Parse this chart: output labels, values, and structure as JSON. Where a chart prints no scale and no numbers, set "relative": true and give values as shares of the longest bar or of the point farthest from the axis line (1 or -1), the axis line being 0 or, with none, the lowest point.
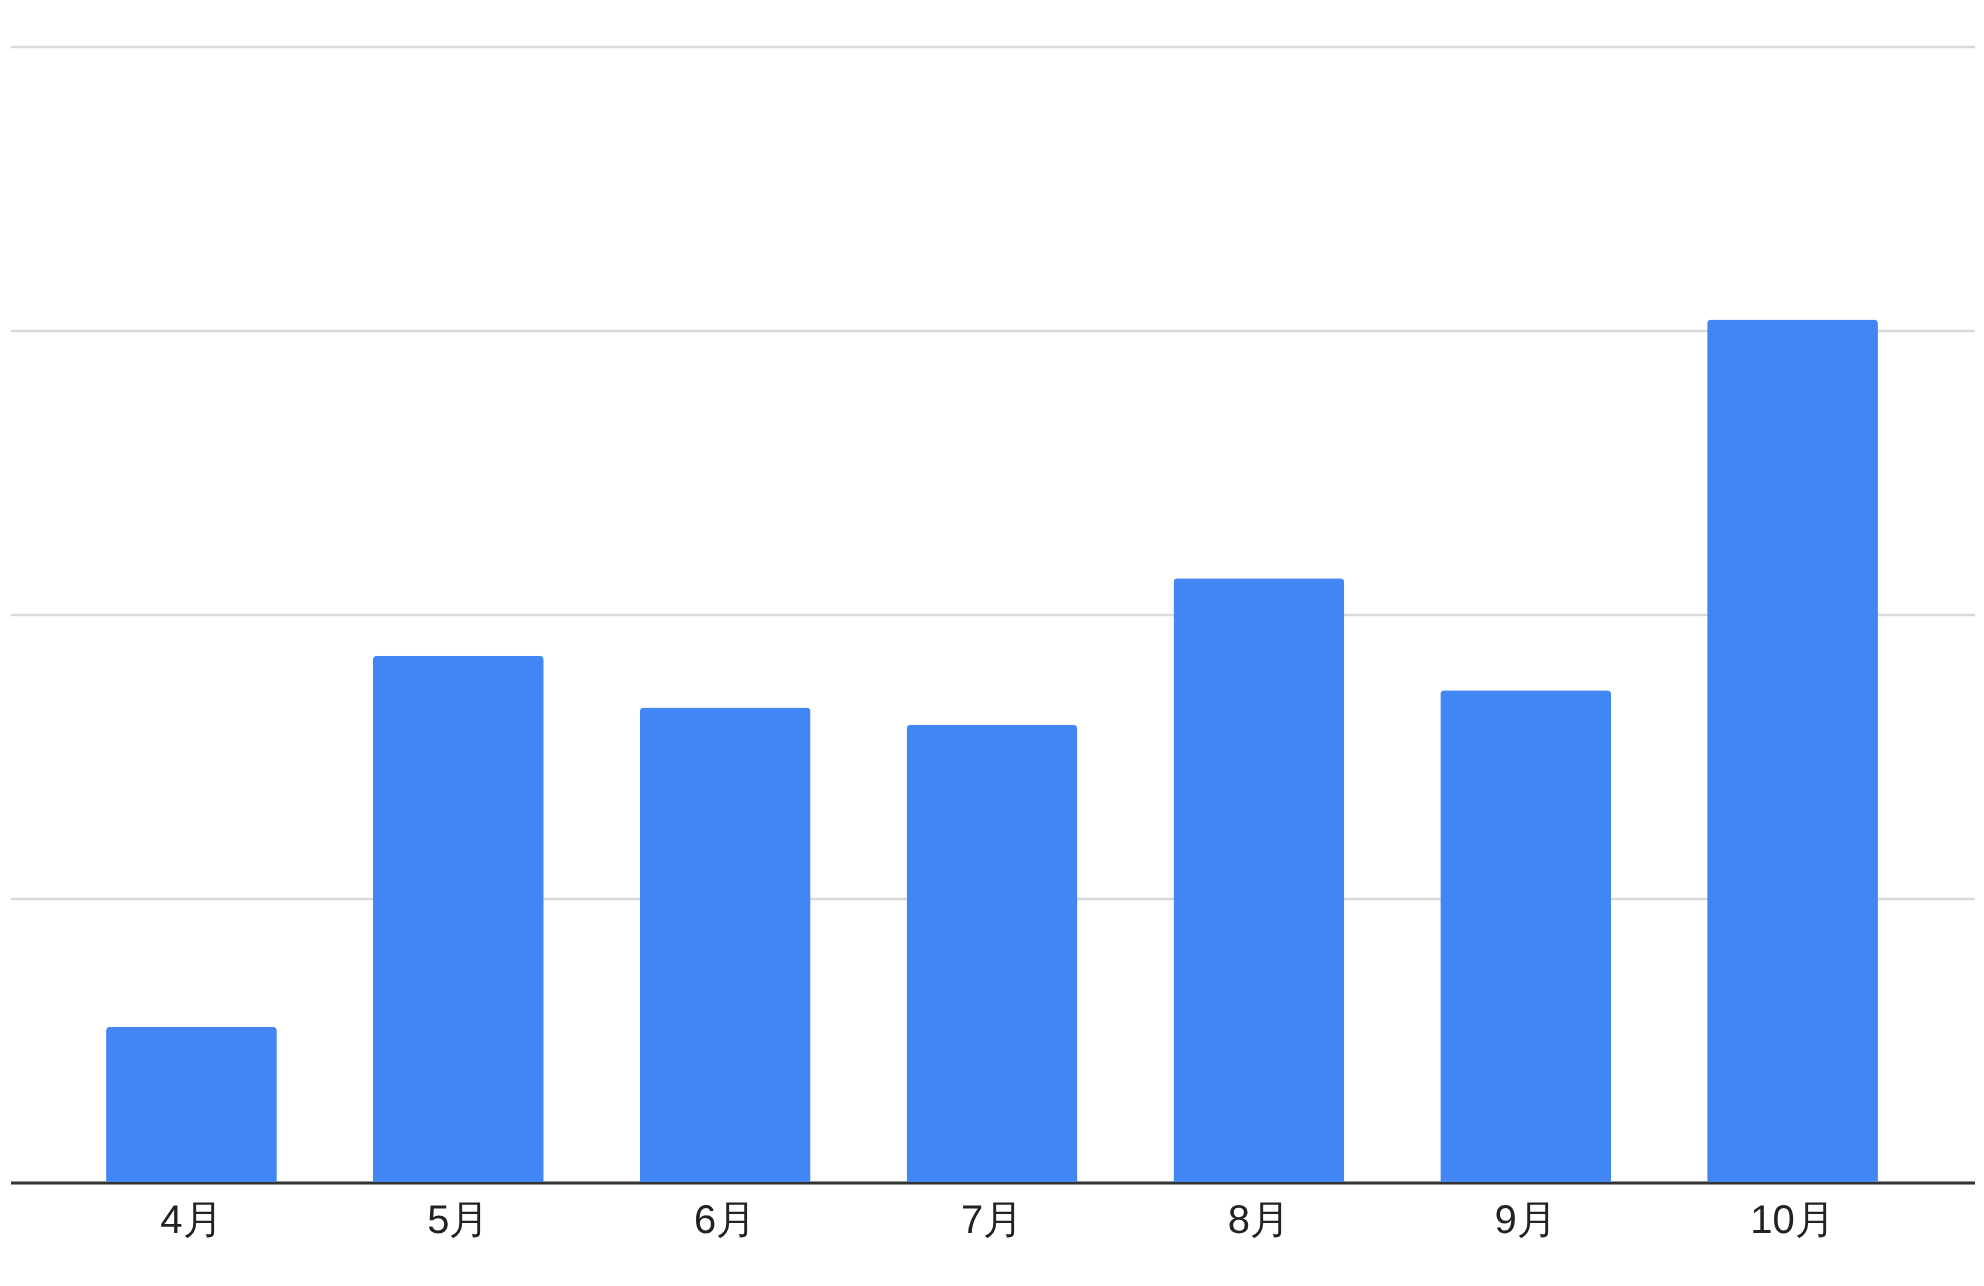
{
  "chart_data": {
    "type": "bar",
    "categories": [
      "4月",
      "5月",
      "6月",
      "7月",
      "8月",
      "9月",
      "10月"
    ],
    "values": [
      0.18,
      0.61,
      0.55,
      0.53,
      0.7,
      0.57,
      1
    ],
    "color": "#4285f4",
    "relative": true,
    "grid": "y"
  }
}
